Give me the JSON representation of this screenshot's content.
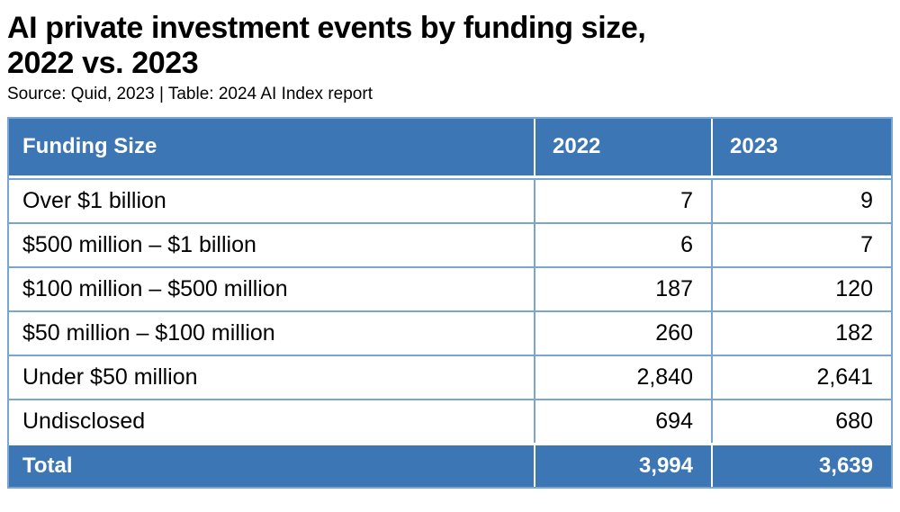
{
  "title_line1": "AI private investment events by funding size,",
  "title_line2": "2022 vs. 2023",
  "source": "Source: Quid, 2023 | Table: 2024 AI Index report",
  "table": {
    "columns": [
      "Funding Size",
      "2022",
      "2023"
    ],
    "rows": [
      {
        "label": "Over $1 billion",
        "v2022": "7",
        "v2023": "9"
      },
      {
        "label": "$500 million – $1 billion",
        "v2022": "6",
        "v2023": "7"
      },
      {
        "label": "$100 million – $500 million",
        "v2022": "187",
        "v2023": "120"
      },
      {
        "label": "$50 million – $100 million",
        "v2022": "260",
        "v2023": "182"
      },
      {
        "label": "Under $50 million",
        "v2022": "2,840",
        "v2023": "2,641"
      },
      {
        "label": "Undisclosed",
        "v2022": "694",
        "v2023": "680"
      }
    ],
    "total": {
      "label": "Total",
      "v2022": "3,994",
      "v2023": "3,639"
    }
  },
  "colors": {
    "header_blue": "#3d76b4",
    "grid_light_blue": "#79a5d2",
    "text_black": "#000000",
    "text_white": "#ffffff",
    "background": "#ffffff"
  },
  "chart_data": {
    "type": "table",
    "title": "AI private investment events by funding size, 2022 vs. 2023",
    "source": "Source: Quid, 2023 | Table: 2024 AI Index report",
    "columns": [
      "Funding Size",
      "2022",
      "2023"
    ],
    "rows": [
      [
        "Over $1 billion",
        7,
        9
      ],
      [
        "$500 million – $1 billion",
        6,
        7
      ],
      [
        "$100 million – $500 million",
        187,
        120
      ],
      [
        "$50 million – $100 million",
        260,
        182
      ],
      [
        "Under $50 million",
        2840,
        2641
      ],
      [
        "Undisclosed",
        694,
        680
      ]
    ],
    "totals": [
      "Total",
      3994,
      3639
    ]
  }
}
